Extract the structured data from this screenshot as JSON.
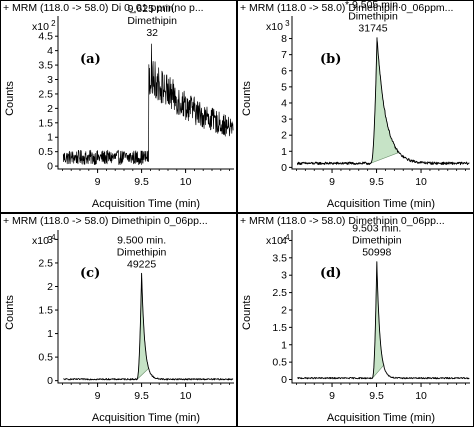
{
  "chart_data": [
    {
      "type": "line",
      "panel_label": "(a)",
      "header": "+ MRM (118.0 -> 58.0) Di 0_01 ppm(no p...",
      "ylabel": "Counts",
      "y_multiplier": "x10 2",
      "xlabel": "Acquisition Time (min)",
      "xlim": [
        8.55,
        10.55
      ],
      "x_ticks": [
        9,
        9.5,
        10
      ],
      "x_tick_labels": [
        "9",
        "9.5",
        "10"
      ],
      "ylim": [
        -0.1,
        5.2
      ],
      "y_ticks": [
        0,
        0.5,
        1,
        1.5,
        2,
        2.5,
        3,
        3.5,
        4,
        4.5
      ],
      "y_tick_labels": [
        "0",
        "0.5",
        "1",
        "1.5",
        "2",
        "2.5",
        "3",
        "3.5",
        "4",
        "4.5"
      ],
      "annotation": [
        "9.625 min.",
        "Dimethipin",
        "32"
      ],
      "profile": {
        "baseline": 0.3,
        "noise": 0.25,
        "onset": 9.58,
        "peak": 9.62,
        "peak_height": 4.3,
        "plateau": 2.9,
        "decay": 0.9,
        "plateau_noise": 0.7,
        "integrated": false
      }
    },
    {
      "type": "line",
      "panel_label": "(b)",
      "header": "+ MRM (118.0 -> 58.0) Dimethipin 0_06ppm...",
      "ylabel": "Counts",
      "y_multiplier": "x10 3",
      "xlabel": "Acquisition Time (min)",
      "xlim": [
        8.55,
        10.55
      ],
      "x_ticks": [
        9,
        9.5,
        10
      ],
      "x_tick_labels": [
        "9",
        "9.5",
        "10"
      ],
      "ylim": [
        -0.1,
        9.4
      ],
      "y_ticks": [
        0,
        1,
        2,
        3,
        4,
        5,
        6,
        7,
        8
      ],
      "y_tick_labels": [
        "0",
        "1",
        "2",
        "3",
        "4",
        "5",
        "6",
        "7",
        "8"
      ],
      "annotation": [
        "* 9.505 min.",
        "Dimethipin",
        "31745"
      ],
      "profile": {
        "baseline": 0.25,
        "noise": 0.08,
        "onset": 9.44,
        "peak": 9.505,
        "peak_height": 7.8,
        "decay": 0.1,
        "integrated": true,
        "int_start": 9.43,
        "int_end": 9.75
      }
    },
    {
      "type": "line",
      "panel_label": "(c)",
      "header": "+ MRM (118.0 -> 58.0) Dimethipin 0_06pp...",
      "ylabel": "Counts",
      "y_multiplier": "x10 4",
      "xlabel": "Acquisition Time (min)",
      "xlim": [
        8.55,
        10.55
      ],
      "x_ticks": [
        9,
        9.5,
        10
      ],
      "x_tick_labels": [
        "9",
        "9.5",
        "10"
      ],
      "ylim": [
        -0.05,
        3.2
      ],
      "y_ticks": [
        0,
        0.5,
        1,
        1.5,
        2,
        2.5,
        3
      ],
      "y_tick_labels": [
        "0",
        "0.5",
        "1",
        "1.5",
        "2",
        "2.5",
        "3"
      ],
      "annotation": [
        "9.500 min.",
        "Dimethipin",
        "49225"
      ],
      "profile": {
        "baseline": 0.03,
        "noise": 0.015,
        "onset": 9.45,
        "peak": 9.5,
        "peak_height": 2.25,
        "decay": 0.035,
        "integrated": true,
        "int_start": 9.45,
        "int_end": 9.58
      }
    },
    {
      "type": "line",
      "panel_label": "(d)",
      "header": "+ MRM (118.0 -> 58.0) Dimethipin 0_06pp...",
      "ylabel": "Counts",
      "y_multiplier": "x10 4",
      "xlabel": "Acquisition Time (min)",
      "xlim": [
        8.55,
        10.55
      ],
      "x_ticks": [
        9,
        9.5,
        10
      ],
      "x_tick_labels": [
        "9",
        "9.5",
        "10"
      ],
      "ylim": [
        -0.1,
        4.3
      ],
      "y_ticks": [
        0,
        0.5,
        1,
        1.5,
        2,
        2.5,
        3,
        3.5,
        4
      ],
      "y_tick_labels": [
        "0",
        "0.5",
        "1",
        "1.5",
        "2",
        "2.5",
        "3",
        "3.5",
        "4"
      ],
      "annotation": [
        "9.503 min.",
        "Dimethipin",
        "50998"
      ],
      "profile": {
        "baseline": 0.04,
        "noise": 0.02,
        "onset": 9.455,
        "peak": 9.503,
        "peak_height": 3.35,
        "decay": 0.035,
        "integrated": true,
        "int_start": 9.455,
        "int_end": 9.58
      }
    }
  ],
  "colors": {
    "trace": "#000000",
    "fill": "#c6e3c6",
    "frame": "#000000"
  }
}
